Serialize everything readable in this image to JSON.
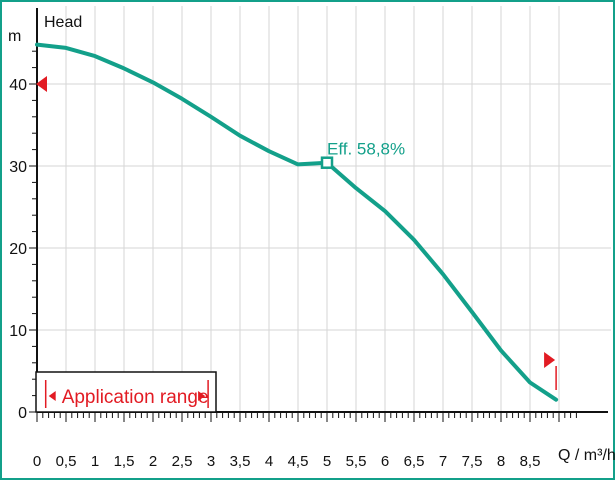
{
  "chart_data": {
    "type": "line",
    "ylabel": "Head",
    "yunit": "m",
    "xlabel": "Q / m³/h",
    "xlim": [
      0,
      9.3
    ],
    "ylim": [
      0,
      46
    ],
    "x_ticks": [
      "0",
      "0,5",
      "1",
      "1,5",
      "2",
      "2,5",
      "3",
      "3,5",
      "4",
      "4,5",
      "5",
      "5,5",
      "6",
      "6,5",
      "7",
      "7,5",
      "8",
      "8,5"
    ],
    "y_ticks": [
      "0",
      "10",
      "20",
      "30",
      "40"
    ],
    "grid": true,
    "series": [
      {
        "points": [
          [
            0,
            44.8
          ],
          [
            0.5,
            44.4
          ],
          [
            1,
            43.4
          ],
          [
            1.5,
            41.9
          ],
          [
            2,
            40.2
          ],
          [
            2.5,
            38.2
          ],
          [
            3,
            36.0
          ],
          [
            3.5,
            33.7
          ],
          [
            4,
            31.8
          ],
          [
            4.5,
            30.2
          ],
          [
            5,
            30.4
          ],
          [
            5.5,
            27.3
          ],
          [
            6,
            24.5
          ],
          [
            6.5,
            21.0
          ],
          [
            7,
            16.8
          ],
          [
            7.5,
            12.2
          ],
          [
            8,
            7.5
          ],
          [
            8.5,
            3.6
          ],
          [
            8.95,
            1.5
          ]
        ]
      }
    ],
    "operating_point": {
      "x": 5.0,
      "y": 30.4,
      "label": "Eff.  58,8%"
    },
    "application_range": {
      "label": "Application range",
      "x_start": 0.15,
      "x_end": 2.95
    },
    "range_markers": {
      "left_y": 40,
      "right_x": 8.95
    },
    "colors": {
      "curve": "#13a08a",
      "marker": "#e21b23",
      "frame": "#13a08a"
    }
  }
}
